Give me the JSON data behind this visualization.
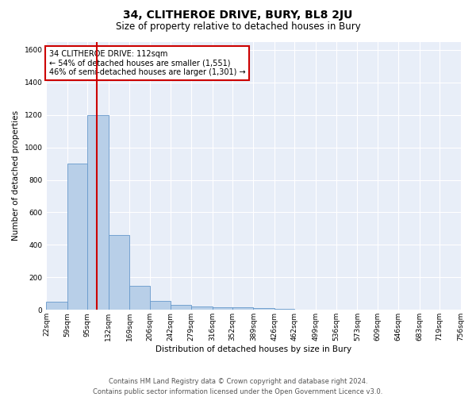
{
  "title": "34, CLITHEROE DRIVE, BURY, BL8 2JU",
  "subtitle": "Size of property relative to detached houses in Bury",
  "xlabel": "Distribution of detached houses by size in Bury",
  "ylabel": "Number of detached properties",
  "bar_color": "#b8cfe8",
  "bar_edge_color": "#6699cc",
  "background_color": "#e8eef8",
  "grid_color": "#ffffff",
  "red_line_x": 112,
  "annotation_text": "34 CLITHEROE DRIVE: 112sqm\n← 54% of detached houses are smaller (1,551)\n46% of semi-detached houses are larger (1,301) →",
  "annotation_box_color": "#ffffff",
  "annotation_border_color": "#cc0000",
  "bins": [
    22,
    59,
    95,
    132,
    169,
    206,
    242,
    279,
    316,
    352,
    389,
    426,
    462,
    499,
    536,
    573,
    609,
    646,
    683,
    719,
    756
  ],
  "bar_heights": [
    50,
    900,
    1200,
    460,
    150,
    55,
    30,
    20,
    15,
    15,
    10,
    5,
    0,
    0,
    0,
    0,
    0,
    0,
    0,
    0
  ],
  "ylim": [
    0,
    1650
  ],
  "yticks": [
    0,
    200,
    400,
    600,
    800,
    1000,
    1200,
    1400,
    1600
  ],
  "footnote": "Contains HM Land Registry data © Crown copyright and database right 2024.\nContains public sector information licensed under the Open Government Licence v3.0.",
  "title_fontsize": 10,
  "subtitle_fontsize": 8.5,
  "axis_fontsize": 7.5,
  "tick_fontsize": 6.5,
  "footnote_fontsize": 6.0,
  "annot_fontsize": 7.0
}
